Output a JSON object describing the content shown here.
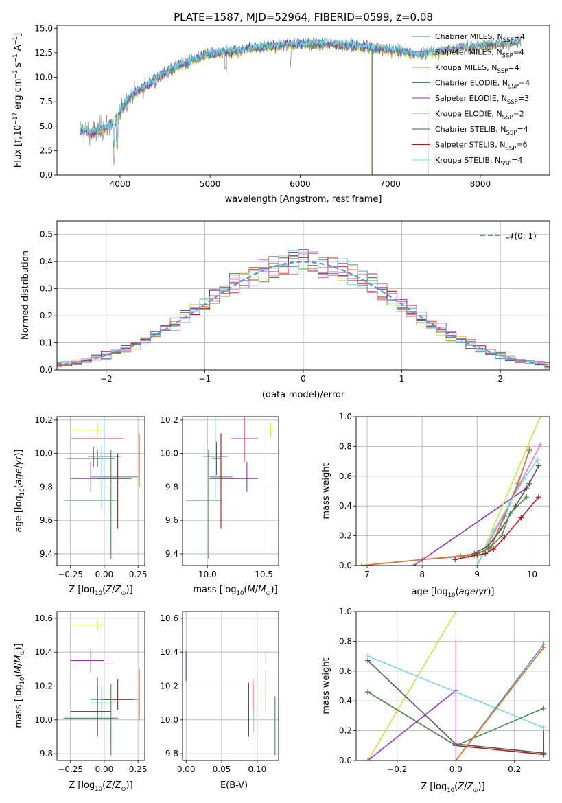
{
  "title": "PLATE=1587, MJD=52964, FIBERID=0599, z=0.08",
  "colors": {
    "Chabrier MILES": "#4a90c8",
    "Salpeter MILES": "#e2762a",
    "Kroupa MILES": "#c8873a",
    "Chabrier ELODIE": "#4a8a55",
    "Salpeter ELODIE": "#8e35b0",
    "Kroupa ELODIE": "#cbe14d",
    "Chabrier STELIB": "#555555",
    "Salpeter STELIB": "#b31b1b",
    "Kroupa STELIB": "#7fd6de",
    "pink": "#e377c2",
    "gaussian": "#5b8fd9"
  },
  "chart_data": [
    {
      "type": "line",
      "title": "PLATE=1587, MJD=52964, FIBERID=0599, z=0.08",
      "xlabel": "wavelength [Angstrom, rest frame]",
      "ylabel": "Flux [f_λ 10^-17 erg cm^-2 s^-1 A^-1]",
      "xlim": [
        3300,
        8770
      ],
      "ylim": [
        0,
        15.3
      ],
      "xticks": [
        4000,
        5000,
        6000,
        7000,
        8000
      ],
      "yticks": [
        0.0,
        2.5,
        5.0,
        7.5,
        10.0,
        12.5,
        15.0
      ],
      "legend": "top-right",
      "series": [
        {
          "name": "Chabrier MILES, N_SSP=4"
        },
        {
          "name": "Salpeter MILES, N_SSP=4"
        },
        {
          "name": "Kroupa MILES, N_SSP=4"
        },
        {
          "name": "Chabrier ELODIE, N_SSP=4"
        },
        {
          "name": "Salpeter ELODIE, N_SSP=3"
        },
        {
          "name": "Kroupa ELODIE, N_SSP=2"
        },
        {
          "name": "Chabrier STELIB, N_SSP=4"
        },
        {
          "name": "Salpeter STELIB, N_SSP=6"
        },
        {
          "name": "Kroupa STELIB, N_SSP=4"
        }
      ],
      "spectrum_shape": {
        "x": [
          3550,
          3700,
          3850,
          3950,
          4050,
          4150,
          4300,
          4500,
          4700,
          4900,
          5100,
          5300,
          5500,
          5700,
          5900,
          6100,
          6300,
          6500,
          6700,
          6900,
          7100,
          7300,
          7500,
          7800,
          8100,
          8450
        ],
        "y": [
          4.6,
          4.3,
          4.9,
          5.4,
          7.3,
          8.3,
          9.2,
          10.4,
          11.3,
          12.1,
          12.5,
          12.7,
          13.0,
          13.2,
          13.3,
          13.4,
          13.4,
          13.3,
          13.1,
          12.9,
          12.7,
          12.3,
          12.6,
          13.0,
          13.3,
          13.6
        ]
      }
    },
    {
      "type": "line",
      "xlabel": "(data-model)/error",
      "ylabel": "Normed distribution",
      "xlim": [
        -2.5,
        2.5
      ],
      "ylim": [
        0,
        0.55
      ],
      "xticks": [
        -2,
        -1,
        0,
        1,
        2
      ],
      "yticks": [
        0.0,
        0.1,
        0.2,
        0.3,
        0.4,
        0.5
      ],
      "legend": "top-right",
      "series": [
        {
          "name": "𝒩(0, 1)",
          "type": "gaussian",
          "mean": 0,
          "sigma": 1
        }
      ]
    },
    {
      "type": "scatter",
      "xlabel": "Z [log10(Z/Z☉)]",
      "ylabel": "age  [log10(age/yr)]",
      "xlim": [
        -0.35,
        0.3
      ],
      "ylim": [
        9.33,
        10.22
      ],
      "xticks": [
        -0.25,
        0.0,
        0.25
      ],
      "yticks": [
        9.4,
        9.6,
        9.8,
        10.0,
        10.2
      ],
      "points": [
        {
          "series": "Kroupa ELODIE",
          "x": -0.05,
          "y": 10.14,
          "xerr": [
            0.2,
            0.05
          ],
          "yerr": [
            0.04,
            0.04
          ]
        },
        {
          "series": "pink",
          "x": 0.0,
          "y": 10.09,
          "xerr": [
            0.24,
            0.14
          ],
          "yerr": [
            0.0,
            0.0
          ]
        },
        {
          "series": "Chabrier STELIB",
          "x": -0.05,
          "y": 9.97,
          "xerr": [
            0.23,
            0.13
          ],
          "yerr": [
            0.05,
            0.05
          ]
        },
        {
          "series": "Kroupa STELIB",
          "x": 0.0,
          "y": 9.98,
          "xerr": [
            0.12,
            0.12
          ],
          "yerr": [
            0.25,
            0.25
          ]
        },
        {
          "series": "Chabrier MILES",
          "x": 0.05,
          "y": 9.86,
          "xerr": [
            0.15,
            0.2
          ],
          "yerr": [
            0.0,
            0.0
          ]
        },
        {
          "series": "Salpeter ELODIE",
          "x": -0.1,
          "y": 9.85,
          "xerr": [
            0.15,
            0.1
          ],
          "yerr": [
            0.08,
            0.1
          ]
        },
        {
          "series": "Salpeter MILES",
          "x": 0.26,
          "y": 9.95,
          "xerr": [
            0.0,
            0.0
          ],
          "yerr": [
            0.15,
            0.17
          ]
        },
        {
          "series": "Salpeter STELIB",
          "x": 0.1,
          "y": 9.85,
          "xerr": [
            0.15,
            0.1
          ],
          "yerr": [
            0.3,
            0.15
          ]
        },
        {
          "series": "Chabrier ELODIE",
          "x": -0.1,
          "y": 9.72,
          "xerr": [
            0.2,
            0.2
          ],
          "yerr": [
            0.0,
            0.0
          ]
        },
        {
          "series": "Chabrier ELODIE",
          "x": 0.05,
          "y": 9.72,
          "xerr": [
            0.0,
            0.0
          ],
          "yerr": [
            0.35,
            0.3
          ]
        },
        {
          "series": "Kroupa STELIB",
          "x": -0.02,
          "y": 9.95,
          "xerr": [
            0.0,
            0.0
          ],
          "yerr": [
            0.28,
            0.1
          ]
        },
        {
          "series": "Chabrier STELIB",
          "x": -0.08,
          "y": 9.98,
          "xerr": [
            0.0,
            0.0
          ],
          "yerr": [
            0.06,
            0.06
          ]
        }
      ]
    },
    {
      "type": "scatter",
      "xlabel": "mass [log10(M/M☉)]",
      "ylim": [
        9.33,
        10.22
      ],
      "xlim": [
        9.78,
        10.63
      ],
      "xticks": [
        10.0,
        10.5
      ],
      "yticks": [
        9.4,
        9.6,
        9.8,
        10.0,
        10.2
      ],
      "points": [
        {
          "series": "Kroupa ELODIE",
          "x": 10.56,
          "y": 10.14,
          "xerr": [
            0.03,
            0.03
          ],
          "yerr": [
            0.04,
            0.04
          ]
        },
        {
          "series": "pink",
          "x": 10.33,
          "y": 10.09,
          "xerr": [
            0.12,
            0.12
          ],
          "yerr": [
            0.14,
            0.14
          ]
        },
        {
          "series": "Kroupa STELIB",
          "x": 10.07,
          "y": 9.98,
          "xerr": [
            0.11,
            0.11
          ],
          "yerr": [
            0.25,
            0.25
          ]
        },
        {
          "series": "Chabrier STELIB",
          "x": 10.08,
          "y": 9.97,
          "xerr": [
            0.04,
            0.04
          ],
          "yerr": [
            0.1,
            0.1
          ]
        },
        {
          "series": "Chabrier MILES",
          "x": 10.12,
          "y": 9.86,
          "xerr": [
            0.1,
            0.1
          ],
          "yerr": [
            0.0,
            0.0
          ]
        },
        {
          "series": "Salpeter ELODIE",
          "x": 10.35,
          "y": 9.85,
          "xerr": [
            0.15,
            0.1
          ],
          "yerr": [
            0.08,
            0.1
          ]
        },
        {
          "series": "Salpeter MILES",
          "x": 10.12,
          "y": 9.95,
          "xerr": [
            0.0,
            0.0
          ],
          "yerr": [
            0.15,
            0.17
          ]
        },
        {
          "series": "Salpeter STELIB",
          "x": 10.12,
          "y": 9.85,
          "xerr": [
            0.1,
            0.12
          ],
          "yerr": [
            0.3,
            0.27
          ]
        },
        {
          "series": "Chabrier ELODIE",
          "x": 10.01,
          "y": 9.72,
          "xerr": [
            0.2,
            0.12
          ],
          "yerr": [
            0.35,
            0.3
          ]
        }
      ]
    },
    {
      "type": "line",
      "xlabel": "age  [log10(age/yr)]",
      "ylabel": "mass weight",
      "xlim": [
        6.8,
        10.32
      ],
      "ylim": [
        0,
        1.0
      ],
      "xticks": [
        7,
        8,
        9,
        10
      ],
      "yticks": [
        0.0,
        0.2,
        0.4,
        0.6,
        0.8,
        1.0
      ],
      "series": [
        {
          "name": "Chabrier MILES",
          "x": [
            6.9,
            8.0,
            8.7,
            9.0,
            9.25,
            9.5,
            9.75,
            9.95
          ],
          "y": [
            0.0,
            0.04,
            0.06,
            0.08,
            0.12,
            0.33,
            0.55,
            0.78
          ]
        },
        {
          "name": "Salpeter MILES",
          "x": [
            6.9,
            8.0,
            8.7,
            9.0,
            9.25,
            9.5,
            9.75,
            9.95
          ],
          "y": [
            0.0,
            0.04,
            0.065,
            0.08,
            0.12,
            0.34,
            0.56,
            0.77
          ]
        },
        {
          "name": "Salpeter ELODIE",
          "x": [
            7.85,
            9.9
          ],
          "y": [
            0.0,
            0.52
          ]
        },
        {
          "name": "Kroupa ELODIE",
          "x": [
            9.0,
            10.15
          ],
          "y": [
            0.0,
            1.0
          ]
        },
        {
          "name": "pink",
          "x": [
            9.0,
            10.15
          ],
          "y": [
            0.0,
            0.81
          ]
        },
        {
          "name": "Kroupa STELIB",
          "x": [
            9.0,
            9.3,
            9.6,
            9.85,
            10.1
          ],
          "y": [
            0.0,
            0.23,
            0.42,
            0.58,
            0.71
          ]
        },
        {
          "name": "Chabrier STELIB",
          "x": [
            8.95,
            9.2,
            9.45,
            9.7,
            9.95,
            10.12
          ],
          "y": [
            0.08,
            0.13,
            0.25,
            0.4,
            0.55,
            0.67
          ]
        },
        {
          "name": "Chabrier ELODIE",
          "x": [
            8.95,
            9.2,
            9.45,
            9.6,
            9.9
          ],
          "y": [
            0.07,
            0.11,
            0.2,
            0.35,
            0.46
          ]
        },
        {
          "name": "Salpeter STELIB",
          "x": [
            8.6,
            8.85,
            9.0,
            9.15,
            9.3,
            9.5,
            9.8,
            10.12
          ],
          "y": [
            0.04,
            0.06,
            0.07,
            0.08,
            0.11,
            0.19,
            0.32,
            0.46
          ]
        }
      ]
    },
    {
      "type": "scatter",
      "xlabel": "Z [log10(Z/Z☉)]",
      "ylabel": "mass [log10(M/M☉)]",
      "xlim": [
        -0.35,
        0.3
      ],
      "ylim": [
        9.76,
        10.64
      ],
      "xticks": [
        -0.25,
        0.0,
        0.25
      ],
      "yticks": [
        9.8,
        10.0,
        10.2,
        10.4,
        10.6
      ],
      "points": [
        {
          "series": "Kroupa ELODIE",
          "x": -0.05,
          "y": 10.56,
          "xerr": [
            0.2,
            0.05
          ],
          "yerr": [
            0.03,
            0.03
          ]
        },
        {
          "series": "Salpeter ELODIE",
          "x": -0.1,
          "y": 10.35,
          "xerr": [
            0.15,
            0.1
          ],
          "yerr": [
            0.07,
            0.07
          ]
        },
        {
          "series": "pink",
          "x": 0.0,
          "y": 10.33,
          "xerr": [
            0.0,
            0.08
          ],
          "yerr": [
            0.0,
            0.0
          ]
        },
        {
          "series": "Salpeter MILES",
          "x": 0.26,
          "y": 10.12,
          "xerr": [
            0.0,
            0.0
          ],
          "yerr": [
            0.12,
            0.18
          ]
        },
        {
          "series": "Chabrier MILES",
          "x": 0.05,
          "y": 10.12,
          "xerr": [
            0.15,
            0.2
          ],
          "yerr": [
            0.0,
            0.0
          ]
        },
        {
          "series": "Salpeter STELIB",
          "x": 0.1,
          "y": 10.12,
          "xerr": [
            0.12,
            0.12
          ],
          "yerr": [
            0.06,
            0.12
          ]
        },
        {
          "series": "Kroupa STELIB",
          "x": -0.02,
          "y": 10.1,
          "xerr": [
            0.08,
            0.1
          ],
          "yerr": [
            0.1,
            0.1
          ]
        },
        {
          "series": "Chabrier STELIB",
          "x": -0.05,
          "y": 10.05,
          "xerr": [
            0.2,
            0.1
          ],
          "yerr": [
            0.15,
            0.15
          ]
        },
        {
          "series": "Chabrier ELODIE",
          "x": -0.1,
          "y": 10.01,
          "xerr": [
            0.2,
            0.2
          ],
          "yerr": [
            0.0,
            0.0
          ]
        },
        {
          "series": "Chabrier ELODIE",
          "x": 0.05,
          "y": 10.01,
          "xerr": [
            0.0,
            0.0
          ],
          "yerr": [
            0.22,
            0.2
          ]
        },
        {
          "series": "Chabrier STELIB",
          "x": -0.05,
          "y": 10.1,
          "xerr": [
            0.0,
            0.0
          ],
          "yerr": [
            0.2,
            0.15
          ]
        }
      ]
    },
    {
      "type": "scatter",
      "xlabel": "E(B-V)",
      "xlim": [
        -0.005,
        0.13
      ],
      "ylim": [
        9.76,
        10.64
      ],
      "xticks": [
        0.0,
        0.05,
        0.1
      ],
      "yticks": [
        9.8,
        10.0,
        10.2,
        10.4,
        10.6
      ],
      "points": [
        {
          "series": "Kroupa ELODIE",
          "x": 0.0,
          "y": 10.56,
          "yerr": [
            0.03,
            0.03
          ]
        },
        {
          "series": "Salpeter ELODIE",
          "x": 0.0,
          "y": 10.33,
          "yerr": [
            0.1,
            0.08
          ]
        },
        {
          "series": "pink",
          "x": 0.112,
          "y": 10.33,
          "yerr": [
            0.0,
            0.08
          ]
        },
        {
          "series": "Salpeter MILES",
          "x": 0.112,
          "y": 10.17,
          "yerr": [
            0.12,
            0.12
          ]
        },
        {
          "series": "Chabrier STELIB",
          "x": 0.088,
          "y": 10.06,
          "yerr": [
            0.16,
            0.16
          ]
        },
        {
          "series": "Salpeter STELIB",
          "x": 0.094,
          "y": 10.12,
          "yerr": [
            0.06,
            0.12
          ]
        },
        {
          "series": "Kroupa STELIB",
          "x": 0.095,
          "y": 10.07,
          "yerr": [
            0.14,
            0.14
          ]
        },
        {
          "series": "Chabrier ELODIE",
          "x": 0.125,
          "y": 9.97,
          "yerr": [
            0.18,
            0.17
          ]
        }
      ]
    },
    {
      "type": "line",
      "xlabel": "Z [log10(Z/Z☉)]",
      "ylabel": "mass weight",
      "xlim": [
        -0.34,
        0.32
      ],
      "ylim": [
        0,
        1.0
      ],
      "xticks": [
        -0.2,
        0.0,
        0.2
      ],
      "yticks": [
        0.0,
        0.2,
        0.4,
        0.6,
        0.8,
        1.0
      ],
      "series": [
        {
          "name": "Kroupa ELODIE",
          "x": [
            -0.3,
            0.0
          ],
          "y": [
            0.0,
            1.0
          ]
        },
        {
          "name": "Salpeter ELODIE",
          "x": [
            -0.3,
            0.0
          ],
          "y": [
            0.0,
            0.47
          ]
        },
        {
          "name": "Kroupa STELIB",
          "x": [
            -0.3,
            0.3
          ],
          "y": [
            0.7,
            0.22
          ]
        },
        {
          "name": "Chabrier STELIB",
          "x": [
            -0.3,
            0.0,
            0.3
          ],
          "y": [
            0.67,
            0.11,
            0.05
          ]
        },
        {
          "name": "Salpeter STELIB",
          "x": [
            -0.3,
            0.0,
            0.3
          ],
          "y": [
            0.46,
            0.1,
            0.04
          ]
        },
        {
          "name": "Chabrier ELODIE",
          "x": [
            -0.3,
            0.0,
            0.3
          ],
          "y": [
            0.46,
            0.1,
            0.35
          ]
        },
        {
          "name": "Chabrier MILES",
          "x": [
            0.0,
            0.3
          ],
          "y": [
            0.0,
            0.78
          ]
        },
        {
          "name": "Salpeter MILES",
          "x": [
            0.0,
            0.3
          ],
          "y": [
            0.0,
            0.76
          ]
        }
      ]
    }
  ]
}
